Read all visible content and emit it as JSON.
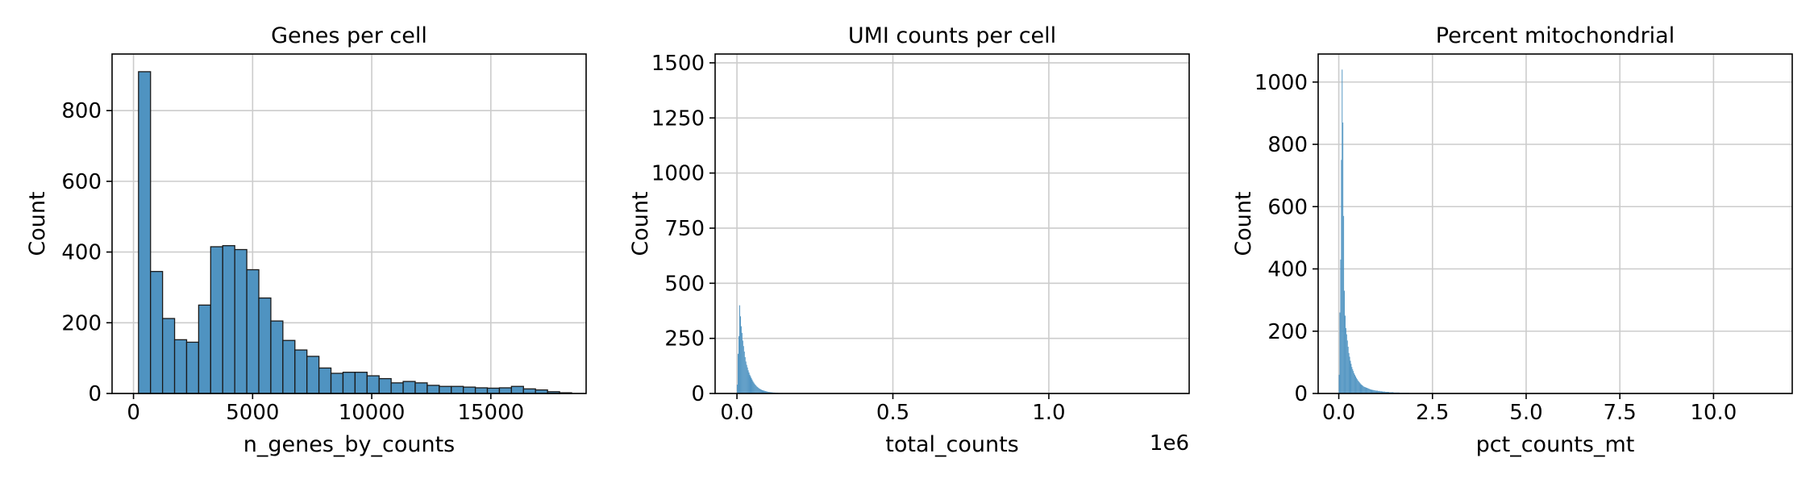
{
  "colors": {
    "bar": "#4f93c1",
    "edge": "#1a1a1a",
    "grid": "#cccccc",
    "axis": "#000000",
    "background": "#ffffff"
  },
  "chart_data": [
    {
      "type": "bar",
      "title": "Genes per cell",
      "xlabel": "n_genes_by_counts",
      "ylabel": "Count",
      "xlim": [
        -900,
        19000
      ],
      "ylim": [
        0,
        960
      ],
      "xticks": [
        0,
        5000,
        10000,
        15000
      ],
      "xtick_labels": [
        "0",
        "5000",
        "10000",
        "15000"
      ],
      "yticks": [
        0,
        200,
        400,
        600,
        800
      ],
      "ytick_labels": [
        "0",
        "200",
        "400",
        "600",
        "800"
      ],
      "offset_label": "",
      "grid": true,
      "bin_start": 210,
      "bin_width": 505,
      "values": [
        910,
        345,
        212,
        152,
        145,
        250,
        415,
        418,
        407,
        350,
        270,
        205,
        150,
        123,
        105,
        72,
        57,
        60,
        60,
        50,
        42,
        30,
        34,
        30,
        23,
        20,
        20,
        18,
        16,
        15,
        16,
        20,
        13,
        10,
        5,
        2
      ],
      "outlined_bars": true
    },
    {
      "type": "bar",
      "title": "UMI counts per cell",
      "xlabel": "total_counts",
      "ylabel": "Count",
      "xlim": [
        -70000,
        1450000
      ],
      "ylim": [
        0,
        1540
      ],
      "xticks": [
        0,
        500000,
        1000000
      ],
      "xtick_labels": [
        "0.0",
        "0.5",
        "1.0"
      ],
      "yticks": [
        0,
        250,
        500,
        750,
        1000,
        1250,
        1500
      ],
      "ytick_labels": [
        "0",
        "250",
        "500",
        "750",
        "1000",
        "1250",
        "1500"
      ],
      "offset_label": "1e6",
      "grid": true,
      "bin_start": 0,
      "bin_width": 2500,
      "values": [
        40,
        180,
        260,
        400,
        350,
        305,
        275,
        240,
        215,
        190,
        165,
        145,
        130,
        118,
        105,
        95,
        85,
        78,
        70,
        63,
        56,
        50,
        45,
        40,
        36,
        32,
        29,
        26,
        23,
        21,
        19,
        17,
        15,
        14,
        13,
        12,
        11,
        10,
        9,
        8,
        7,
        7,
        6,
        6,
        5,
        5,
        4,
        4,
        4,
        3,
        3,
        3,
        3,
        2,
        2,
        2,
        2,
        2,
        2,
        1,
        1,
        1,
        1,
        1,
        1,
        1,
        1,
        1,
        1,
        1
      ],
      "outlined_bars": false
    },
    {
      "type": "bar",
      "title": "Percent mitochondrial",
      "xlabel": "pct_counts_mt",
      "ylabel": "Count",
      "xlim": [
        -0.55,
        12.1
      ],
      "ylim": [
        0,
        1090
      ],
      "xticks": [
        0,
        2.5,
        5,
        7.5,
        10
      ],
      "xtick_labels": [
        "0.0",
        "2.5",
        "5.0",
        "7.5",
        "10.0"
      ],
      "yticks": [
        0,
        200,
        400,
        600,
        800,
        1000
      ],
      "ytick_labels": [
        "0",
        "200",
        "400",
        "600",
        "800",
        "1000"
      ],
      "offset_label": "",
      "grid": true,
      "bin_start": 0,
      "bin_width": 0.02,
      "values": [
        60,
        260,
        430,
        750,
        1040,
        870,
        570,
        330,
        250,
        210,
        190,
        170,
        150,
        130,
        118,
        105,
        95,
        85,
        78,
        72,
        65,
        60,
        55,
        50,
        46,
        42,
        39,
        36,
        33,
        30,
        28,
        26,
        24,
        22,
        21,
        20,
        19,
        18,
        17,
        16,
        15,
        14,
        13,
        12,
        12,
        11,
        11,
        10,
        10,
        9,
        9,
        9,
        8,
        8,
        8,
        7,
        7,
        7,
        6,
        6,
        6,
        6,
        5,
        5,
        5,
        5,
        5,
        4,
        4,
        4,
        4,
        4,
        4,
        3,
        3,
        3,
        3,
        3,
        3,
        3,
        3,
        2,
        2,
        2,
        2,
        2,
        2,
        2,
        2,
        2,
        2,
        2,
        2,
        2,
        1,
        1,
        1,
        1,
        1,
        1,
        1,
        1,
        1,
        1,
        1,
        1,
        1,
        1,
        1,
        1
      ],
      "outlined_bars": false
    }
  ]
}
